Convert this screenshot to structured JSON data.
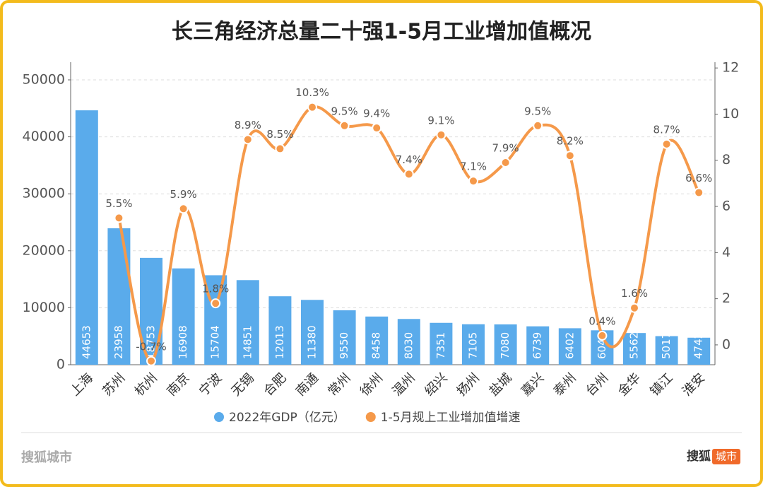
{
  "chart_data": {
    "type": "bar-line",
    "title": "长三角经济总量二十强1-5月工业增加值概况",
    "categories": [
      "上海",
      "苏州",
      "杭州",
      "南京",
      "宁波",
      "无锡",
      "合肥",
      "南通",
      "常州",
      "徐州",
      "温州",
      "绍兴",
      "扬州",
      "盐城",
      "嘉兴",
      "泰州",
      "台州",
      "金华",
      "镇江",
      "淮安"
    ],
    "series": [
      {
        "name": "2022年GDP（亿元）",
        "color": "#5aabeb",
        "type": "bar",
        "values": [
          44653,
          23958,
          18753,
          16908,
          15704,
          14851,
          12013,
          11380,
          9550,
          8458,
          8030,
          7351,
          7105,
          7080,
          6739,
          6402,
          6040,
          5562,
          5017,
          4742
        ]
      },
      {
        "name": "1-5月规上工业增加值增速",
        "color": "#f5994a",
        "type": "line",
        "axis": "y2",
        "values": [
          null,
          5.5,
          -0.7,
          5.9,
          1.8,
          8.9,
          8.5,
          10.3,
          9.5,
          9.4,
          7.4,
          9.1,
          7.1,
          7.9,
          9.5,
          8.2,
          0.4,
          1.6,
          8.7,
          6.6
        ],
        "value_labels": [
          null,
          "5.5%",
          "-0.7%",
          "5.9%",
          "1.8%",
          "8.9%",
          "8.5%",
          "10.3%",
          "9.5%",
          "9.4%",
          "7.4%",
          "9.1%",
          "7.1%",
          "7.9%",
          "9.5%",
          "8.2%",
          "0.4%",
          "1.6%",
          "8.7%",
          "6.6%"
        ]
      }
    ],
    "ylim": [
      0,
      53100
    ],
    "yticks": [
      0,
      10000,
      20000,
      30000,
      40000,
      50000
    ],
    "y2lim": [
      -0.86,
      12.25
    ],
    "y2ticks": [
      0,
      2,
      4,
      6,
      8,
      10,
      12
    ],
    "grid": true
  },
  "footer": {
    "source": "搜狐城市",
    "logo": "搜狐",
    "badge": "城市"
  }
}
